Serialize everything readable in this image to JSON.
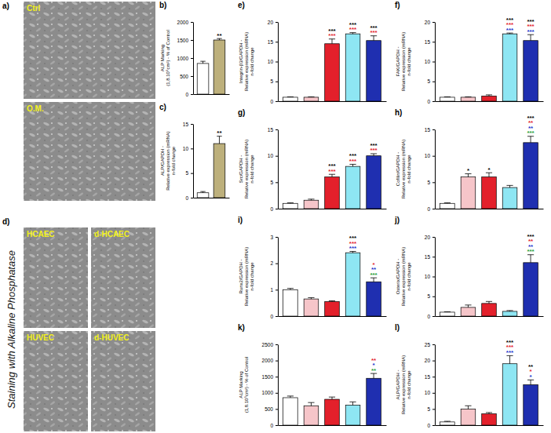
{
  "figure": {
    "side_title": "Staining with Alkaline Phosphatase",
    "panels": [
      {
        "letter": "a)",
        "images": [
          "Ctrl",
          "O.M."
        ]
      },
      {
        "letter": "d)",
        "images": [
          "HCAEC",
          "d-HCAEC",
          "HUVEC",
          "d-HUVEC"
        ]
      }
    ]
  },
  "chart_data": [
    {
      "panel": "b)",
      "type": "bar",
      "y_label": [
        "ALP Marking",
        "(1,8.10⁵cm²) - % of Control"
      ],
      "categories": [
        null,
        null
      ],
      "values": [
        850,
        1500
      ],
      "errors": [
        60,
        40
      ],
      "colors": [
        "#ffffff",
        "#bdb07c"
      ],
      "ylim": [
        0,
        2000
      ],
      "yticks": [
        0,
        500,
        1000,
        1500,
        2000
      ],
      "tick_labels": "y",
      "stars": [
        [],
        [
          {
            "text": "**",
            "color": "#000000"
          }
        ]
      ]
    },
    {
      "panel": "c)",
      "type": "bar",
      "y_label": [
        "ALP/GAPDH -",
        "Relative expression (mRNA)",
        "n-fold change"
      ],
      "categories": [
        null,
        null
      ],
      "values": [
        1,
        11
      ],
      "errors": [
        0.25,
        1.5
      ],
      "colors": [
        "#ffffff",
        "#bdb07c"
      ],
      "ylim": [
        0,
        15
      ],
      "yticks": [
        0,
        5,
        10,
        15
      ],
      "tick_labels": "y",
      "stars": [
        [],
        [
          {
            "text": "**",
            "color": "#000000"
          }
        ]
      ]
    },
    {
      "panel": "e)",
      "type": "bar",
      "y_label": [
        "Integrin-β3/GAPDH -",
        "Relative expression (mRNA)",
        "n-fold change"
      ],
      "categories": [
        null,
        null,
        null,
        null,
        null
      ],
      "values": [
        1,
        1,
        14.5,
        17,
        15.3
      ],
      "errors": [
        0.1,
        0.1,
        1.2,
        0.3,
        1.2
      ],
      "colors": [
        "#ffffff",
        "#f6c5c9",
        "#e3202b",
        "#8ee6f3",
        "#1f2fb0"
      ],
      "ylim": [
        0,
        20
      ],
      "yticks": [
        0,
        5,
        10,
        15,
        20
      ],
      "tick_labels": "y",
      "stars": [
        [],
        [],
        [
          {
            "text": "***",
            "color": "#000000"
          },
          {
            "text": "***",
            "color": "#e3202b"
          }
        ],
        [
          {
            "text": "***",
            "color": "#000000"
          },
          {
            "text": "***",
            "color": "#e3202b"
          }
        ],
        [
          {
            "text": "***",
            "color": "#000000"
          },
          {
            "text": "***",
            "color": "#e3202b"
          }
        ]
      ]
    },
    {
      "panel": "f)",
      "type": "bar",
      "y_label": [
        "FAK/GAPDH -",
        "Relative expression (mRNA)",
        "n-fold change"
      ],
      "categories": [
        null,
        null,
        null,
        null,
        null
      ],
      "values": [
        1,
        1,
        1.3,
        17,
        15.3
      ],
      "errors": [
        0.1,
        0.1,
        0.3,
        0.2,
        1.5
      ],
      "colors": [
        "#ffffff",
        "#f6c5c9",
        "#e3202b",
        "#8ee6f3",
        "#1f2fb0"
      ],
      "ylim": [
        0,
        20
      ],
      "yticks": [
        0,
        5,
        10,
        15,
        20
      ],
      "tick_labels": "y",
      "stars": [
        [],
        [],
        [],
        [
          {
            "text": "***",
            "color": "#000000"
          },
          {
            "text": "***",
            "color": "#e3202b"
          },
          {
            "text": "***",
            "color": "#2233cc"
          }
        ],
        [
          {
            "text": "***",
            "color": "#000000"
          },
          {
            "text": "***",
            "color": "#e3202b"
          },
          {
            "text": "***",
            "color": "#2233cc"
          }
        ]
      ]
    },
    {
      "panel": "g)",
      "type": "bar",
      "y_label": [
        "Src/GAPDH -",
        "Relative expression (mRNA)",
        "n-fold change"
      ],
      "categories": [
        null,
        null,
        null,
        null,
        null
      ],
      "values": [
        1,
        1.6,
        6,
        8,
        10
      ],
      "errors": [
        0.1,
        0.2,
        0.5,
        0.4,
        0.4
      ],
      "colors": [
        "#ffffff",
        "#f6c5c9",
        "#e3202b",
        "#8ee6f3",
        "#1f2fb0"
      ],
      "ylim": [
        0,
        15
      ],
      "yticks": [
        0,
        5,
        10,
        15
      ],
      "tick_labels": "y",
      "stars": [
        [],
        [],
        [
          {
            "text": "***",
            "color": "#000000"
          },
          {
            "text": "***",
            "color": "#e3202b"
          }
        ],
        [
          {
            "text": "***",
            "color": "#000000"
          },
          {
            "text": "***",
            "color": "#e3202b"
          }
        ],
        [
          {
            "text": "***",
            "color": "#000000"
          },
          {
            "text": "***",
            "color": "#e3202b"
          }
        ]
      ]
    },
    {
      "panel": "h)",
      "type": "bar",
      "y_label": [
        "Cofilin/GAPDH -",
        "Relative expression (mRNA)",
        "n-fold change"
      ],
      "categories": [
        null,
        null,
        null,
        null,
        null
      ],
      "values": [
        1,
        6,
        6,
        4,
        12.5
      ],
      "errors": [
        0.1,
        0.6,
        0.8,
        0.4,
        1.2
      ],
      "colors": [
        "#ffffff",
        "#f6c5c9",
        "#e3202b",
        "#8ee6f3",
        "#1f2fb0"
      ],
      "ylim": [
        0,
        15
      ],
      "yticks": [
        0,
        5,
        10,
        15
      ],
      "tick_labels": "y",
      "stars": [
        [],
        [
          {
            "text": "*",
            "color": "#000000"
          }
        ],
        [
          {
            "text": "*",
            "color": "#000000"
          }
        ],
        [],
        [
          {
            "text": "***",
            "color": "#000000"
          },
          {
            "text": "**",
            "color": "#e3202b"
          },
          {
            "text": "**",
            "color": "#2233cc"
          },
          {
            "text": "***",
            "color": "#1fa038"
          }
        ]
      ]
    },
    {
      "panel": "i)",
      "type": "bar",
      "y_label": [
        "Runx2/GAPDH -",
        "Relative expression (mRNA)",
        "n-fold change"
      ],
      "categories": [
        null,
        null,
        null,
        null,
        null
      ],
      "values": [
        1,
        0.65,
        0.55,
        2.4,
        1.3
      ],
      "errors": [
        0.05,
        0.05,
        0.03,
        0.05,
        0.15
      ],
      "colors": [
        "#ffffff",
        "#f6c5c9",
        "#e3202b",
        "#8ee6f3",
        "#1f2fb0"
      ],
      "ylim": [
        0,
        3
      ],
      "yticks": [
        0,
        1,
        2,
        3
      ],
      "tick_labels": "y",
      "stars": [
        [],
        [],
        [],
        [
          {
            "text": "***",
            "color": "#000000"
          },
          {
            "text": "***",
            "color": "#e3202b"
          },
          {
            "text": "***",
            "color": "#2233cc"
          }
        ],
        [
          {
            "text": "*",
            "color": "#e3202b"
          },
          {
            "text": "**",
            "color": "#2233cc"
          },
          {
            "text": "***",
            "color": "#1fa038"
          }
        ]
      ]
    },
    {
      "panel": "j)",
      "type": "bar",
      "y_label": [
        "Osterix/GAPDH -",
        "Relative expression (mRNA)",
        "n-fold change"
      ],
      "categories": [
        null,
        null,
        null,
        null,
        null
      ],
      "values": [
        1,
        2.2,
        3.2,
        1.2,
        13.5
      ],
      "errors": [
        0.1,
        0.6,
        0.5,
        0.2,
        2
      ],
      "colors": [
        "#ffffff",
        "#f6c5c9",
        "#e3202b",
        "#8ee6f3",
        "#1f2fb0"
      ],
      "ylim": [
        0,
        20
      ],
      "yticks": [
        0,
        5,
        10,
        15,
        20
      ],
      "tick_labels": "y",
      "stars": [
        [],
        [],
        [],
        [],
        [
          {
            "text": "***",
            "color": "#000000"
          },
          {
            "text": "**",
            "color": "#e3202b"
          },
          {
            "text": "**",
            "color": "#2233cc"
          },
          {
            "text": "***",
            "color": "#1fa038"
          }
        ]
      ]
    },
    {
      "panel": "k)",
      "type": "bar",
      "y_label": [
        "ALP Marking",
        "(1,8.10⁵cm²) - % of Control"
      ],
      "categories": [
        null,
        null,
        null,
        null,
        null
      ],
      "values": [
        850,
        600,
        800,
        620,
        1450
      ],
      "errors": [
        50,
        100,
        70,
        100,
        150
      ],
      "colors": [
        "#ffffff",
        "#f6c5c9",
        "#e3202b",
        "#8ee6f3",
        "#1f2fb0"
      ],
      "ylim": [
        0,
        2500
      ],
      "yticks": [
        0,
        500,
        1000,
        1500,
        2000,
        2500
      ],
      "tick_labels": "y",
      "stars": [
        [],
        [],
        [],
        [],
        [
          {
            "text": "**",
            "color": "#e3202b"
          },
          {
            "text": "*",
            "color": "#2233cc"
          },
          {
            "text": "**",
            "color": "#1fa038"
          }
        ]
      ]
    },
    {
      "panel": "l)",
      "type": "bar",
      "y_label": [
        "ALP/GAPDH -",
        "Relative expression (mRNA)",
        "n-fold change"
      ],
      "categories": [
        null,
        null,
        null,
        null,
        null
      ],
      "values": [
        1,
        5,
        3.5,
        19,
        12.5
      ],
      "errors": [
        0.2,
        1,
        0.4,
        2.5,
        1.5
      ],
      "colors": [
        "#ffffff",
        "#f6c5c9",
        "#e3202b",
        "#8ee6f3",
        "#1f2fb0"
      ],
      "ylim": [
        0,
        25
      ],
      "yticks": [
        0,
        5,
        10,
        15,
        20,
        25
      ],
      "tick_labels": "y",
      "stars": [
        [],
        [],
        [],
        [
          {
            "text": "***",
            "color": "#000000"
          },
          {
            "text": "***",
            "color": "#e3202b"
          },
          {
            "text": "***",
            "color": "#2233cc"
          }
        ],
        [
          {
            "text": "**",
            "color": "#000000"
          },
          {
            "text": "*",
            "color": "#e3202b"
          },
          {
            "text": "*",
            "color": "#2233cc"
          }
        ]
      ]
    }
  ]
}
